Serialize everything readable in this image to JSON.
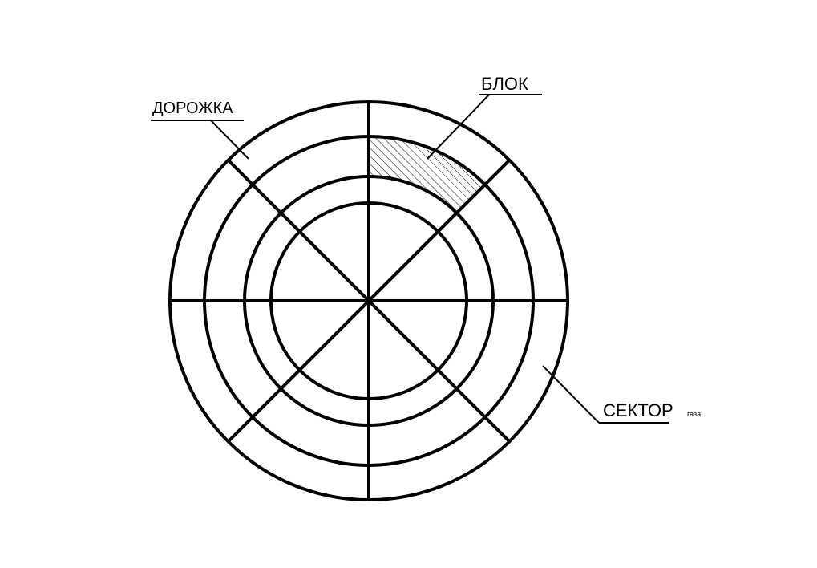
{
  "labels": {
    "track": "ДОРОЖКА",
    "block": "БЛОК",
    "sector": "СЕКТОР",
    "sector_suffix": "газа"
  },
  "disk": {
    "track_count": 4,
    "sector_count": 8,
    "highlighted_block": {
      "track": 3,
      "sector": 1
    },
    "line_color": "#000000",
    "background_color": "#ffffff"
  }
}
